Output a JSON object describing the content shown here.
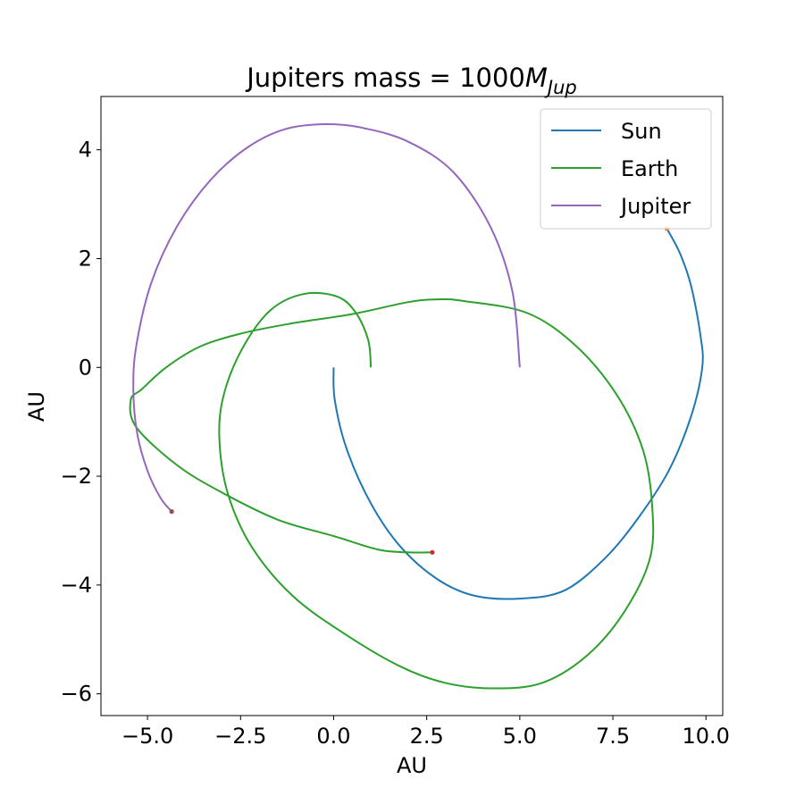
{
  "chart_data": {
    "type": "line",
    "title": {
      "prefix": "Jupiters mass",
      "equals": " = ",
      "value": "1000",
      "symbol": "M",
      "subscript": "Jup"
    },
    "xlabel": "AU",
    "ylabel": "AU",
    "xlim": [
      -6.25,
      10.45
    ],
    "ylim": [
      -6.4,
      4.98
    ],
    "xticks": [
      -5.0,
      -2.5,
      0.0,
      2.5,
      5.0,
      7.5,
      10.0
    ],
    "xtick_labels": [
      "−5.0",
      "−2.5",
      "0.0",
      "2.5",
      "5.0",
      "7.5",
      "10.0"
    ],
    "yticks": [
      -6,
      -4,
      -2,
      0,
      2,
      4
    ],
    "ytick_labels": [
      "−6",
      "−4",
      "−2",
      "0",
      "2",
      "4"
    ],
    "grid": false,
    "legend_position": "upper right",
    "series": [
      {
        "name": "Sun",
        "color": "#1f77b4",
        "points": [
          [
            0.0,
            0.0
          ],
          [
            0.03,
            -0.6
          ],
          [
            0.35,
            -1.5
          ],
          [
            1.0,
            -2.5
          ],
          [
            1.8,
            -3.3
          ],
          [
            2.8,
            -3.9
          ],
          [
            3.8,
            -4.2
          ],
          [
            5.0,
            -4.25
          ],
          [
            6.2,
            -4.1
          ],
          [
            7.3,
            -3.5
          ],
          [
            8.2,
            -2.75
          ],
          [
            9.0,
            -1.9
          ],
          [
            9.6,
            -0.9
          ],
          [
            9.9,
            0.0
          ],
          [
            9.85,
            0.6
          ],
          [
            9.6,
            1.5
          ],
          [
            9.3,
            2.1
          ],
          [
            8.95,
            2.55
          ]
        ],
        "end_marker": {
          "x": 8.95,
          "y": 2.55,
          "color": "#ff7f0e"
        }
      },
      {
        "name": "Earth",
        "color": "#2ca02c",
        "points": [
          [
            1.0,
            0.0
          ],
          [
            0.93,
            0.5
          ],
          [
            0.6,
            1.0
          ],
          [
            0.1,
            1.3
          ],
          [
            -0.8,
            1.35
          ],
          [
            -1.7,
            1.05
          ],
          [
            -2.45,
            0.35
          ],
          [
            -2.95,
            -0.5
          ],
          [
            -3.07,
            -1.3
          ],
          [
            -2.85,
            -2.3
          ],
          [
            -2.2,
            -3.3
          ],
          [
            -1.1,
            -4.2
          ],
          [
            0.3,
            -4.9
          ],
          [
            1.8,
            -5.5
          ],
          [
            3.0,
            -5.8
          ],
          [
            4.3,
            -5.9
          ],
          [
            5.6,
            -5.8
          ],
          [
            6.8,
            -5.3
          ],
          [
            7.8,
            -4.5
          ],
          [
            8.5,
            -3.5
          ],
          [
            8.55,
            -2.5
          ],
          [
            8.3,
            -1.5
          ],
          [
            7.6,
            -0.5
          ],
          [
            6.5,
            0.4
          ],
          [
            5.2,
            1.0
          ],
          [
            3.5,
            1.22
          ],
          [
            2.8,
            1.25
          ],
          [
            2.0,
            1.2
          ],
          [
            0.5,
            0.98
          ],
          [
            -1.2,
            0.8
          ],
          [
            -2.5,
            0.62
          ],
          [
            -3.6,
            0.38
          ],
          [
            -4.5,
            0.0
          ],
          [
            -5.15,
            -0.4
          ],
          [
            -5.45,
            -0.6
          ],
          [
            -5.3,
            -1.1
          ],
          [
            -4.2,
            -1.8
          ],
          [
            -3.0,
            -2.3
          ],
          [
            -1.5,
            -2.8
          ],
          [
            0.0,
            -3.1
          ],
          [
            1.2,
            -3.35
          ],
          [
            2.0,
            -3.4
          ],
          [
            2.65,
            -3.4
          ]
        ],
        "end_marker": {
          "x": 2.65,
          "y": -3.4,
          "color": "#d62728"
        }
      },
      {
        "name": "Jupiter",
        "color": "#9467bd",
        "points": [
          [
            5.0,
            0.0
          ],
          [
            4.8,
            1.4
          ],
          [
            4.2,
            2.6
          ],
          [
            3.2,
            3.6
          ],
          [
            2.0,
            4.15
          ],
          [
            0.8,
            4.4
          ],
          [
            -0.2,
            4.47
          ],
          [
            -1.3,
            4.38
          ],
          [
            -2.3,
            4.05
          ],
          [
            -3.3,
            3.45
          ],
          [
            -4.2,
            2.6
          ],
          [
            -4.9,
            1.55
          ],
          [
            -5.3,
            0.4
          ],
          [
            -5.38,
            -0.4
          ],
          [
            -5.28,
            -1.2
          ],
          [
            -5.0,
            -1.9
          ],
          [
            -4.65,
            -2.4
          ],
          [
            -4.35,
            -2.65
          ]
        ],
        "end_marker": {
          "x": -4.35,
          "y": -2.65,
          "color": "#8c564b"
        }
      }
    ]
  }
}
